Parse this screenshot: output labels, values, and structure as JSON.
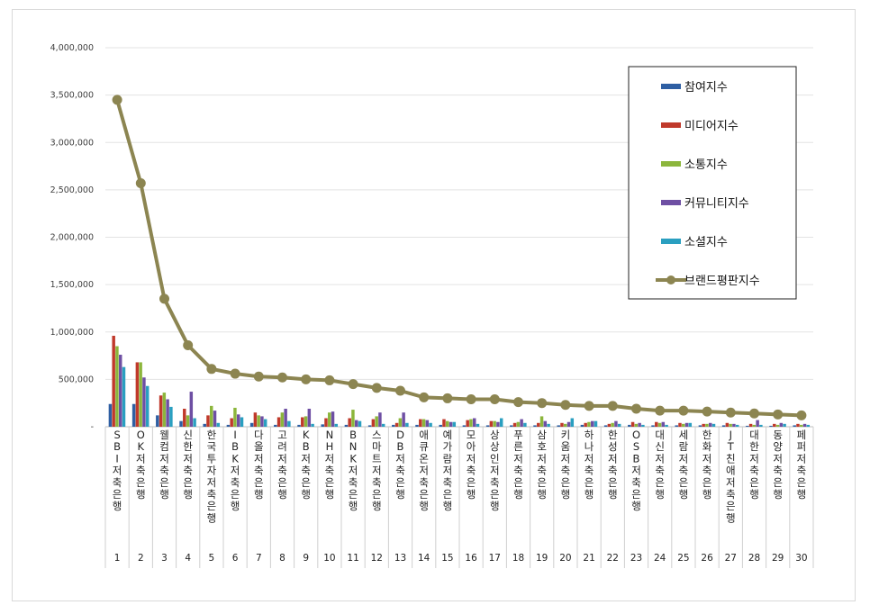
{
  "chart_data": {
    "type": "bar",
    "categories": [
      "SBI저축은행",
      "OK저축은행",
      "웰컴저축은행",
      "신한저축은행",
      "한국투자저축은행",
      "IBK저축은행",
      "다올저축은행",
      "고려저축은행",
      "KB저축은행",
      "NH저축은행",
      "BNK저축은행",
      "스마트저축은행",
      "DB저축은행",
      "애큐온저축은행",
      "예가람저축은행",
      "모아저축은행",
      "상상인저축은행",
      "푸른저축은행",
      "삼호저축은행",
      "키움저축은행",
      "하나저축은행",
      "한성저축은행",
      "OSB저축은행",
      "대신저축은행",
      "세람저축은행",
      "한화저축은행",
      "JT친애저축은행",
      "대한저축은행",
      "동양저축은행",
      "페퍼저축은행"
    ],
    "ranks": [
      "1",
      "2",
      "3",
      "4",
      "5",
      "6",
      "7",
      "8",
      "9",
      "10",
      "11",
      "12",
      "13",
      "14",
      "15",
      "16",
      "17",
      "18",
      "19",
      "20",
      "21",
      "22",
      "23",
      "24",
      "25",
      "26",
      "27",
      "28",
      "29",
      "30"
    ],
    "ylim": [
      0,
      4000000
    ],
    "yticks": [
      "-",
      "500,000",
      "1,000,000",
      "1,500,000",
      "2,000,000",
      "2,500,000",
      "3,000,000",
      "3,500,000",
      "4,000,000"
    ],
    "series": [
      {
        "name": "참여지수",
        "color": "#2e5fa3",
        "type": "bar",
        "values": [
          240000,
          240000,
          120000,
          60000,
          30000,
          20000,
          40000,
          20000,
          20000,
          25000,
          20000,
          15000,
          20000,
          20000,
          20000,
          15000,
          15000,
          15000,
          15000,
          15000,
          20000,
          15000,
          20000,
          15000,
          15000,
          15000,
          15000,
          10000,
          10000,
          15000
        ]
      },
      {
        "name": "미디어지수",
        "color": "#c0392b",
        "type": "bar",
        "values": [
          960000,
          680000,
          330000,
          190000,
          120000,
          90000,
          150000,
          100000,
          100000,
          90000,
          90000,
          80000,
          40000,
          80000,
          80000,
          70000,
          60000,
          40000,
          40000,
          40000,
          40000,
          30000,
          50000,
          50000,
          40000,
          30000,
          40000,
          30000,
          30000,
          30000
        ]
      },
      {
        "name": "소통지수",
        "color": "#8cb63c",
        "type": "bar",
        "values": [
          850000,
          680000,
          360000,
          120000,
          220000,
          200000,
          120000,
          150000,
          110000,
          150000,
          180000,
          110000,
          90000,
          80000,
          60000,
          80000,
          60000,
          50000,
          110000,
          30000,
          50000,
          40000,
          30000,
          40000,
          30000,
          30000,
          30000,
          20000,
          20000,
          20000
        ]
      },
      {
        "name": "커뮤니티지수",
        "color": "#6e4fa3",
        "type": "bar",
        "values": [
          760000,
          520000,
          290000,
          370000,
          170000,
          130000,
          110000,
          190000,
          190000,
          160000,
          70000,
          150000,
          150000,
          70000,
          50000,
          90000,
          50000,
          80000,
          60000,
          50000,
          60000,
          60000,
          40000,
          50000,
          40000,
          40000,
          30000,
          70000,
          40000,
          30000
        ]
      },
      {
        "name": "소셜지수",
        "color": "#2a9fc0",
        "type": "bar",
        "values": [
          630000,
          430000,
          210000,
          90000,
          40000,
          100000,
          80000,
          60000,
          30000,
          30000,
          60000,
          30000,
          40000,
          40000,
          50000,
          30000,
          90000,
          40000,
          30000,
          90000,
          60000,
          30000,
          20000,
          20000,
          40000,
          30000,
          20000,
          20000,
          30000,
          20000
        ]
      },
      {
        "name": "브랜드평판지수",
        "color": "#8c8551",
        "type": "line",
        "values": [
          3450000,
          2570000,
          1350000,
          860000,
          610000,
          560000,
          530000,
          520000,
          500000,
          490000,
          450000,
          410000,
          380000,
          310000,
          300000,
          290000,
          290000,
          260000,
          250000,
          230000,
          220000,
          220000,
          190000,
          170000,
          170000,
          160000,
          150000,
          140000,
          130000,
          120000
        ]
      }
    ]
  }
}
